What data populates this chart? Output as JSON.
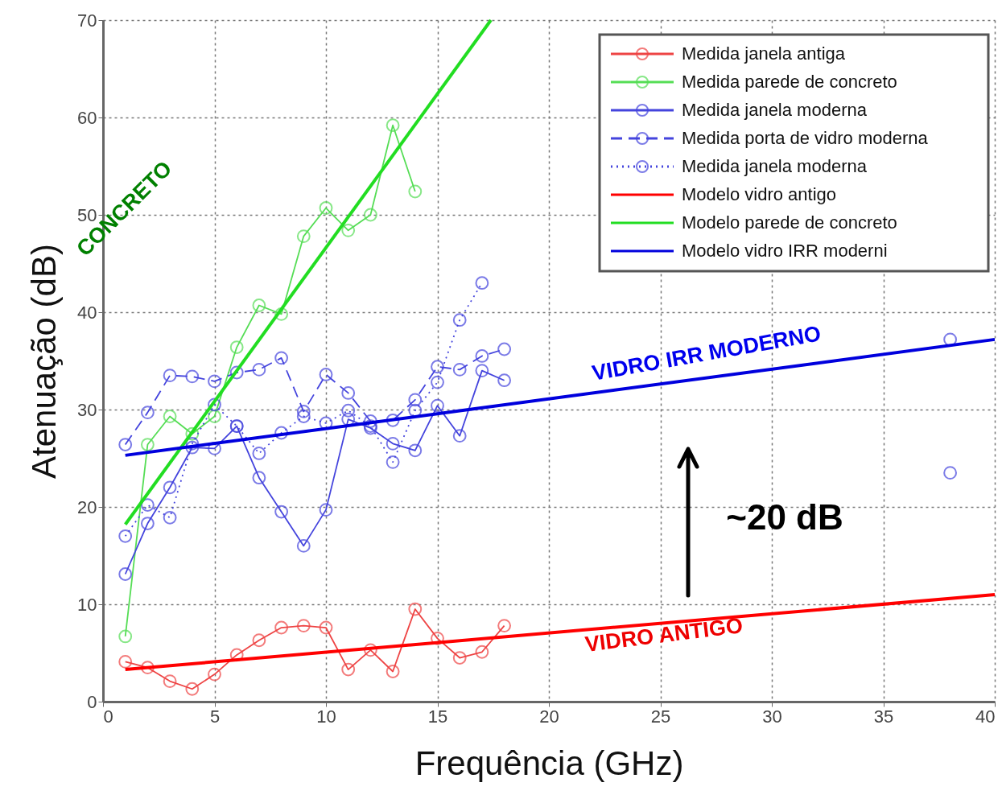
{
  "chart_data": {
    "type": "line",
    "xlabel": "Frequência (GHz)",
    "ylabel": "Atenuação (dB)",
    "xlim": [
      0,
      40
    ],
    "ylim": [
      0,
      70
    ],
    "xticks": [
      0,
      5,
      10,
      15,
      20,
      25,
      30,
      35,
      40
    ],
    "yticks": [
      0,
      10,
      20,
      30,
      40,
      50,
      60,
      70
    ],
    "grid": true,
    "legend": "top right",
    "series": [
      {
        "name": "Medida janela antiga",
        "color": "#ee4444",
        "marker": "circle",
        "line_style": "solid",
        "x": [
          1,
          2,
          3,
          4,
          5,
          6,
          7,
          8,
          9,
          10,
          11,
          12,
          13,
          14,
          15,
          16,
          17,
          18
        ],
        "values": [
          4.1,
          3.5,
          2.1,
          1.3,
          2.8,
          4.8,
          6.3,
          7.6,
          7.8,
          7.6,
          3.3,
          5.3,
          3.1,
          9.5,
          6.5,
          4.5,
          5.1,
          7.8
        ]
      },
      {
        "name": "Medida parede de concreto",
        "color": "#55dd55",
        "marker": "circle",
        "line_style": "solid",
        "x": [
          1,
          2,
          3,
          4,
          5,
          6,
          7,
          8,
          9,
          10,
          11,
          12,
          13,
          14
        ],
        "values": [
          6.7,
          26.4,
          29.3,
          27.5,
          29.3,
          36.4,
          40.7,
          39.8,
          47.8,
          50.7,
          48.4,
          50,
          59.2,
          52.4
        ]
      },
      {
        "name": "Medida janela moderna",
        "color": "#4444dd",
        "marker": "circle",
        "line_style": "solid",
        "x": [
          1,
          2,
          3,
          4,
          5,
          6,
          7,
          8,
          9,
          10,
          11,
          12,
          13,
          14,
          15,
          16,
          17,
          18
        ],
        "values": [
          13.1,
          18.3,
          22,
          26.1,
          26,
          28.3,
          23,
          19.5,
          16,
          19.7,
          29,
          28.1,
          26.5,
          25.8,
          30.4,
          27.3,
          34,
          33
        ]
      },
      {
        "name": "Medida porta de vidro moderna",
        "color": "#4444dd",
        "marker": "circle",
        "line_style": "dashed",
        "x": [
          1,
          2,
          3,
          4,
          5,
          6,
          7,
          8,
          9,
          10,
          11,
          12,
          13,
          14,
          15,
          16,
          17,
          18,
          28,
          38
        ],
        "values": [
          26.4,
          29.7,
          33.5,
          33.4,
          32.9,
          33.8,
          34.1,
          35.3,
          29.8,
          33.6,
          31.7,
          28.8,
          28.9,
          31,
          34.4,
          34.1,
          35.5,
          36.2,
          null,
          37.2
        ]
      },
      {
        "name": "Medida janela moderna",
        "color": "#4444dd",
        "marker": "circle",
        "line_style": "dotted",
        "x": [
          1,
          2,
          3,
          4,
          5,
          6,
          7,
          8,
          9,
          10,
          11,
          12,
          13,
          14,
          15,
          16,
          17,
          28,
          38
        ],
        "values": [
          17,
          20.2,
          18.9,
          26.5,
          30.5,
          28.3,
          25.5,
          27.6,
          29.3,
          28.6,
          29.9,
          28.3,
          24.6,
          29.9,
          32.8,
          39.2,
          43,
          null,
          23.5
        ]
      },
      {
        "name": "Modelo vidro antigo",
        "color": "#ff0000",
        "marker": "none",
        "line_style": "solid",
        "x": [
          1,
          40
        ],
        "values": [
          3.3,
          11
        ]
      },
      {
        "name": "Modelo parede de concreto",
        "color": "#22dd22",
        "marker": "none",
        "line_style": "solid",
        "x": [
          1,
          17.4
        ],
        "values": [
          18.2,
          70
        ]
      },
      {
        "name": "Modelo vidro IRR moderni",
        "color": "#0000dd",
        "marker": "none",
        "line_style": "solid",
        "x": [
          1,
          40
        ],
        "values": [
          25.3,
          37.2
        ]
      }
    ],
    "annotations": [
      "CONCRETO",
      "VIDRO IRR MODERNO",
      "VIDRO ANTIGO",
      "~20 dB"
    ]
  }
}
